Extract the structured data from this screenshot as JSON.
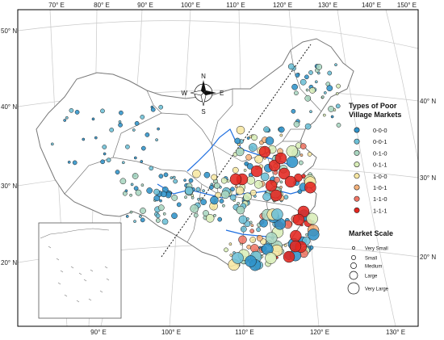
{
  "map": {
    "top_ticks": [
      "70° E",
      "80° E",
      "90° E",
      "100° E",
      "110° E",
      "120° E",
      "130° E",
      "140° E",
      "150° E"
    ],
    "bottom_ticks": [
      "90° E",
      "100° E",
      "110° E",
      "120° E",
      "130° E"
    ],
    "left_ticks": [
      "50° N",
      "40° N",
      "30° N",
      "20° N"
    ],
    "right_ticks": [
      "40° N",
      "30° N",
      "20° N"
    ],
    "colors": {
      "graticule": "#c8c8c8",
      "border": "#777777",
      "river": "#1f6fe0",
      "frame": "#000000"
    }
  },
  "compass": {
    "n": "N",
    "s": "S",
    "e": "E",
    "w": "W"
  },
  "legend_types": {
    "title_line1": "Types of Poor",
    "title_line2": "Village Markets",
    "items": [
      {
        "label": "0-0-0",
        "color": "#2f93c9"
      },
      {
        "label": "0-0-1",
        "color": "#6cbfd6"
      },
      {
        "label": "0-1-0",
        "color": "#a9d6c0"
      },
      {
        "label": "0-1-1",
        "color": "#d9eeb8"
      },
      {
        "label": "1-0-0",
        "color": "#f7e7a2"
      },
      {
        "label": "1-0-1",
        "color": "#f5b27c"
      },
      {
        "label": "1-1-0",
        "color": "#ee7565"
      },
      {
        "label": "1-1-1",
        "color": "#e3261f"
      }
    ]
  },
  "legend_scale": {
    "title": "Market Scale",
    "items": [
      {
        "label": "Very Small",
        "level": 1
      },
      {
        "label": "Small",
        "level": 2
      },
      {
        "label": "Medium",
        "level": 3
      },
      {
        "label": "Large",
        "level": 4
      },
      {
        "label": "Very Large",
        "level": 5
      }
    ]
  }
}
